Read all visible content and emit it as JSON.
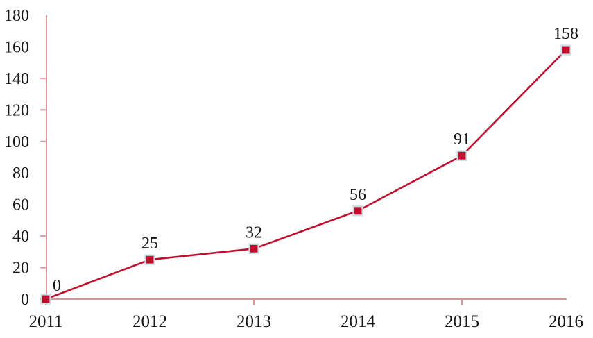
{
  "chart_data": {
    "type": "line",
    "title": "",
    "xlabel": "",
    "ylabel": "",
    "categories": [
      "2011",
      "2012",
      "2013",
      "2014",
      "2015",
      "2016"
    ],
    "values": [
      0,
      25,
      32,
      56,
      91,
      158
    ],
    "data_labels": [
      "0",
      "25",
      "32",
      "56",
      "91",
      "158"
    ],
    "ylim": [
      0,
      180
    ],
    "ytick_step": 20,
    "grid": false,
    "legend": "none",
    "marker": "square",
    "visible_y_axis_ticks": [
      140,
      120,
      100,
      40,
      20,
      0
    ],
    "visible_x_axis_ticks": [
      "2011",
      "2013",
      "2015"
    ],
    "colors": {
      "line": "#C00E2C",
      "marker_fill": "#C00E2C",
      "marker_border": "#C9DCE3",
      "axis": "#DD9598",
      "text": "#161616",
      "background": "#FFFFFF"
    }
  }
}
